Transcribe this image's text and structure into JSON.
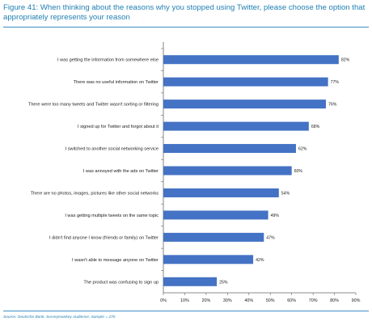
{
  "title": "Figure 41: When thinking about the reasons why you stopped using Twitter, please choose the option that appropriately represents your reason",
  "source": "Source: Deutsche Bank, Surveymonkey Audience, Sample = 270",
  "chart_data": {
    "type": "bar",
    "orientation": "horizontal",
    "categories": [
      "I was getting the information from somewhere else",
      "There was no useful information on Twitter",
      "There were too many tweets and Twitter wasn't sorting or filtering",
      "I signed up for Twitter and forgot about it",
      "I switched to another social networking service",
      "I was annoyed with the ads on Twitter",
      "There are no photos, images, pictures like other social networks",
      "I was getting multiple tweets on the same topic",
      "I didn't find anyone I know (friends or family) on Twitter",
      "I wasn't able to message anyone on Twitter",
      "The product was confusing to sign up"
    ],
    "values": [
      82,
      77,
      76,
      68,
      62,
      60,
      54,
      49,
      47,
      42,
      25
    ],
    "value_labels": [
      "82%",
      "77%",
      "76%",
      "68%",
      "62%",
      "60%",
      "54%",
      "49%",
      "47%",
      "42%",
      "25%"
    ],
    "xlim": [
      0,
      90
    ],
    "xticks": [
      "0%",
      "10%",
      "20%",
      "30%",
      "40%",
      "50%",
      "60%",
      "70%",
      "80%",
      "90%"
    ],
    "bar_color": "#4472c4",
    "grid": false,
    "legend": false
  }
}
